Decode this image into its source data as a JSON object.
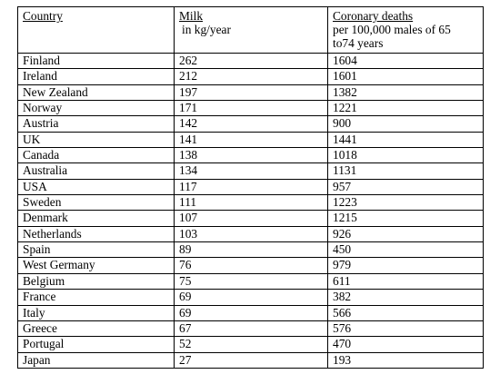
{
  "headers": {
    "country": "Country",
    "milk": "Milk",
    "milk_unit": "in kg/year",
    "deaths": "Coronary deaths",
    "deaths_sub1": "per 100,000 males of 65",
    "deaths_sub2": "to74 years"
  },
  "rows": [
    {
      "country": "Finland",
      "milk": "262",
      "deaths": "1604"
    },
    {
      "country": "Ireland",
      "milk": "212",
      "deaths": "1601"
    },
    {
      "country": "New Zealand",
      "milk": "197",
      "deaths": "1382"
    },
    {
      "country": "Norway",
      "milk": "171",
      "deaths": "1221"
    },
    {
      "country": "Austria",
      "milk": "142",
      "deaths": "900"
    },
    {
      "country": "UK",
      "milk": "141",
      "deaths": "1441"
    },
    {
      "country": "Canada",
      "milk": "138",
      "deaths": "1018"
    },
    {
      "country": "Australia",
      "milk": "134",
      "deaths": "1131"
    },
    {
      "country": "USA",
      "milk": "117",
      "deaths": "957"
    },
    {
      "country": "Sweden",
      "milk": "111",
      "deaths": "1223"
    },
    {
      "country": "Denmark",
      "milk": "107",
      "deaths": "1215"
    },
    {
      "country": "Netherlands",
      "milk": "103",
      "deaths": "926"
    },
    {
      "country": "Spain",
      "milk": "89",
      "deaths": "450"
    },
    {
      "country": "West Germany",
      "milk": "76",
      "deaths": "979"
    },
    {
      "country": "Belgium",
      "milk": "75",
      "deaths": "611"
    },
    {
      "country": "France",
      "milk": "69",
      "deaths": "382"
    },
    {
      "country": "Italy",
      "milk": "69",
      "deaths": "566"
    },
    {
      "country": "Greece",
      "milk": "67",
      "deaths": "576"
    },
    {
      "country": "Portugal",
      "milk": "52",
      "deaths": "470"
    },
    {
      "country": "Japan",
      "milk": "27",
      "deaths": "193"
    }
  ]
}
